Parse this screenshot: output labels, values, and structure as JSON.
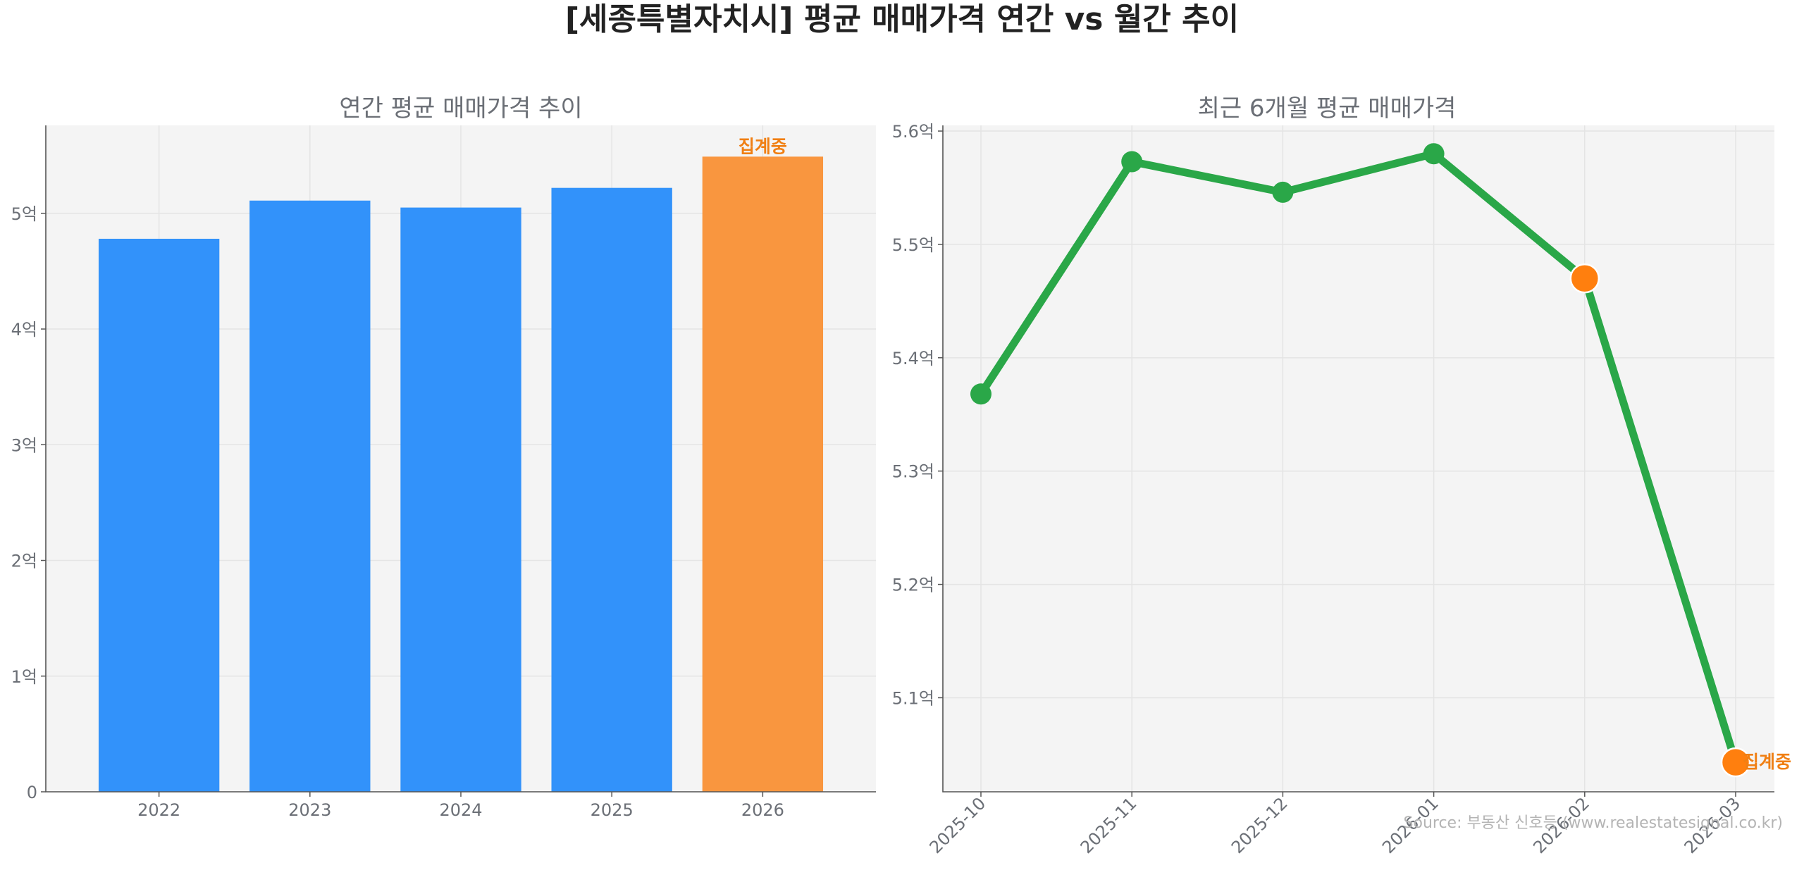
{
  "figure": {
    "title": "[세종특별자치시] 평균 매매가격 연간 vs 월간 추이",
    "source": "Source: 부동산 신호등 (www.realestatesignal.co.kr)"
  },
  "colors": {
    "bar_primary": "#3292fa",
    "bar_highlight": "#f9963f",
    "line": "#2aa748",
    "marker_highlight": "#ff7f0e",
    "annotation": "#f07f13"
  },
  "chart_data": [
    {
      "type": "bar",
      "title": "연간 평균 매매가격 추이",
      "categories": [
        "2022",
        "2023",
        "2024",
        "2025",
        "2026"
      ],
      "values": [
        4.78,
        5.11,
        5.05,
        5.22,
        5.49
      ],
      "highlight_index": 4,
      "highlight_label": "집계중",
      "unit": "억",
      "ylim": [
        0,
        5.76
      ],
      "yticks": [
        {
          "value": 0,
          "label": "0"
        },
        {
          "value": 1,
          "label": "1억"
        },
        {
          "value": 2,
          "label": "2억"
        },
        {
          "value": 3,
          "label": "3억"
        },
        {
          "value": 4,
          "label": "4억"
        },
        {
          "value": 5,
          "label": "5억"
        }
      ],
      "grid": true
    },
    {
      "type": "line",
      "title": "최근 6개월 평균 매매가격",
      "x": [
        "2025-10",
        "2025-11",
        "2025-12",
        "2026-01",
        "2026-02",
        "2026-03"
      ],
      "values": [
        5.368,
        5.573,
        5.546,
        5.58,
        5.47,
        5.043
      ],
      "highlight_indices": [
        4,
        5
      ],
      "highlight_label": "집계중",
      "unit": "억",
      "ylim": [
        5.017,
        5.605
      ],
      "yticks": [
        {
          "value": 5.1,
          "label": "5.1억"
        },
        {
          "value": 5.2,
          "label": "5.2억"
        },
        {
          "value": 5.3,
          "label": "5.3억"
        },
        {
          "value": 5.4,
          "label": "5.4억"
        },
        {
          "value": 5.5,
          "label": "5.5억"
        },
        {
          "value": 5.6,
          "label": "5.6억"
        }
      ],
      "xtick_rotation": 45,
      "grid": true
    }
  ]
}
